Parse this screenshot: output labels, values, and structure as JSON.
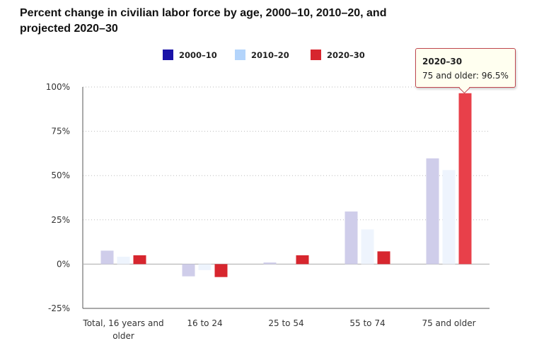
{
  "chart_data": {
    "type": "bar",
    "title": "Percent change in civilian labor force by age, 2000–10, 2010–20, and projected 2020–30",
    "categories": [
      "Total, 16 years and older",
      "16 to 24",
      "25 to 54",
      "55 to 74",
      "75 and older"
    ],
    "series": [
      {
        "name": "2000–10",
        "color": "#1a12a8",
        "faded_color": "#cfcdea",
        "values": [
          7.6,
          -6.9,
          0.9,
          29.7,
          59.7
        ]
      },
      {
        "name": "2010–20",
        "color": "#b3d4fb",
        "faded_color": "#eef4fd",
        "values": [
          4.2,
          -3.4,
          0.0,
          19.6,
          53.1
        ]
      },
      {
        "name": "2020–30",
        "color": "#d7262e",
        "hover_color": "#e8404a",
        "values": [
          5.0,
          -7.3,
          5.0,
          7.2,
          96.5
        ]
      }
    ],
    "ylim": [
      -25,
      100
    ],
    "yticks": [
      "-25%",
      "0%",
      "25%",
      "50%",
      "75%",
      "100%"
    ],
    "ytick_values": [
      -25,
      0,
      25,
      50,
      75,
      100
    ],
    "grid": true,
    "legend": "top",
    "tooltip": {
      "series": "2020–30",
      "text": "75 and older: 96.5%"
    }
  }
}
